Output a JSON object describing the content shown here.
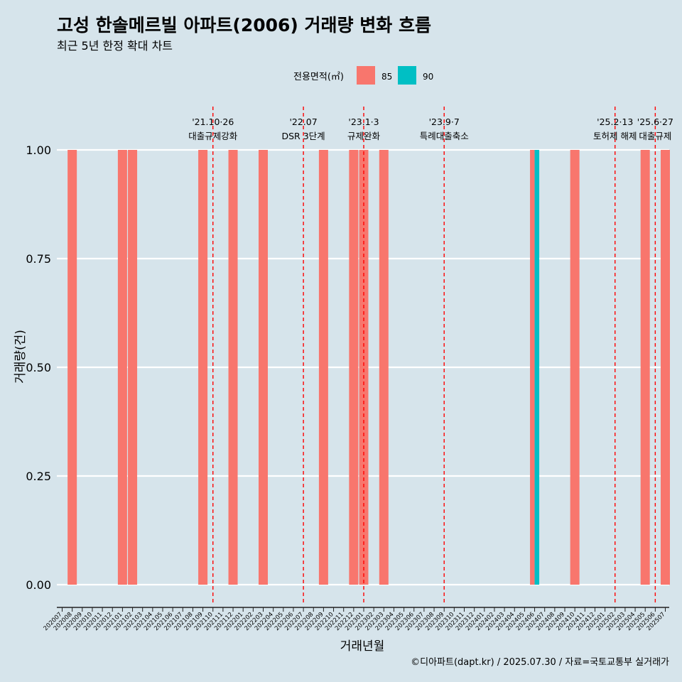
{
  "title": "고성 한솔메르빌 아파트(2006) 거래량 변화 흐름",
  "subtitle": "최근 5년 한정 확대 차트",
  "caption": "©디아파트(dapt.kr) / 2025.07.30 / 자료=국토교통부 실거래가",
  "colors": {
    "85": "#f8766d",
    "90": "#00bfc4",
    "background": "#d6e4eb",
    "grid": "#ffffff",
    "event_line": "#ff0000"
  },
  "chart_data": {
    "type": "bar",
    "xlabel": "거래년월",
    "ylabel": "거래량(건)",
    "ylim": [
      0,
      1
    ],
    "yticks": [
      "0.00",
      "0.25",
      "0.50",
      "0.75",
      "1.00"
    ],
    "legend": {
      "title": "전용면적(㎡)",
      "placement": "top",
      "entries": [
        "85",
        "90"
      ]
    },
    "categories": [
      "202007",
      "202008",
      "202009",
      "202010",
      "202011",
      "202012",
      "202101",
      "202102",
      "202103",
      "202104",
      "202105",
      "202106",
      "202107",
      "202108",
      "202109",
      "202110",
      "202111",
      "202112",
      "202201",
      "202202",
      "202203",
      "202204",
      "202205",
      "202206",
      "202207",
      "202208",
      "202209",
      "202210",
      "202211",
      "202212",
      "202301",
      "202302",
      "202303",
      "202304",
      "202305",
      "202306",
      "202307",
      "202308",
      "202309",
      "202310",
      "202311",
      "202312",
      "202401",
      "202402",
      "202403",
      "202404",
      "202405",
      "202406",
      "202407",
      "202408",
      "202409",
      "202410",
      "202411",
      "202412",
      "202501",
      "202502",
      "202503",
      "202504",
      "202505",
      "202506",
      "202507"
    ],
    "bars": [
      {
        "month": "202008",
        "area": "85",
        "value": 1
      },
      {
        "month": "202101",
        "area": "85",
        "value": 1
      },
      {
        "month": "202102",
        "area": "85",
        "value": 1
      },
      {
        "month": "202109",
        "area": "85",
        "value": 1
      },
      {
        "month": "202112",
        "area": "85",
        "value": 1
      },
      {
        "month": "202203",
        "area": "85",
        "value": 1
      },
      {
        "month": "202209",
        "area": "85",
        "value": 1
      },
      {
        "month": "202212",
        "area": "85",
        "value": 1
      },
      {
        "month": "202301",
        "area": "85",
        "value": 1
      },
      {
        "month": "202303",
        "area": "85",
        "value": 1
      },
      {
        "month": "202406",
        "area": "85",
        "value": 1
      },
      {
        "month": "202406",
        "area": "90",
        "value": 1
      },
      {
        "month": "202410",
        "area": "85",
        "value": 1
      },
      {
        "month": "202505",
        "area": "85",
        "value": 1
      },
      {
        "month": "202507",
        "area": "85",
        "value": 1
      }
    ],
    "events": [
      {
        "date_label": "'21.10·26",
        "label": "대출규제강화",
        "month": "202110"
      },
      {
        "date_label": "'22.07",
        "label": "DSR 3단계",
        "month": "202207"
      },
      {
        "date_label": "'23.1·3",
        "label": "규제완화",
        "month": "202301"
      },
      {
        "date_label": "'23.9·7",
        "label": "특례대출축소",
        "month": "202309"
      },
      {
        "date_label": "'25.2·13",
        "label": "토허제 해제",
        "month": "202502"
      },
      {
        "date_label": "'25.6·27",
        "label": "대출규제",
        "month": "202506"
      }
    ]
  }
}
